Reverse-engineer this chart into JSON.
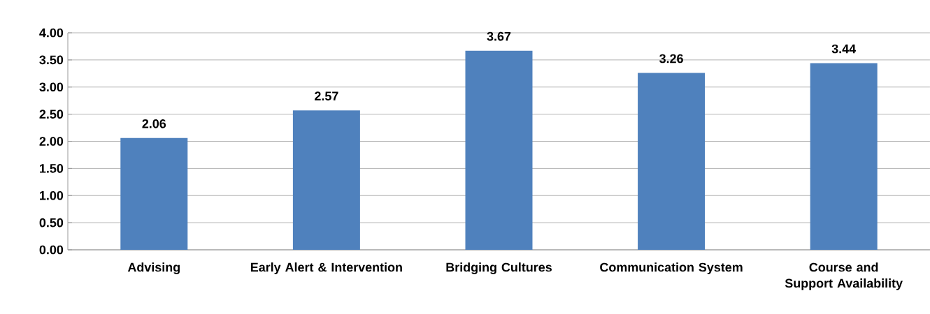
{
  "chart_data": {
    "type": "bar",
    "categories": [
      "Advising",
      "Early Alert & Intervention",
      "Bridging Cultures",
      "Communication System",
      "Course and Support Availability"
    ],
    "values": [
      2.06,
      2.57,
      3.67,
      3.26,
      3.44
    ],
    "color": "#4f81bd",
    "ylim": [
      0,
      4
    ],
    "yticks": [
      {
        "value": 0,
        "label": "0.00"
      },
      {
        "value": 0.5,
        "label": "0.50"
      },
      {
        "value": 1,
        "label": "1.00"
      },
      {
        "value": 1.5,
        "label": "1.50"
      },
      {
        "value": 2,
        "label": "2.00"
      },
      {
        "value": 2.5,
        "label": "2.50"
      },
      {
        "value": 3,
        "label": "3.00"
      },
      {
        "value": 3.5,
        "label": "3.50"
      },
      {
        "value": 4,
        "label": "4.00"
      }
    ],
    "grid": "y",
    "data_labels": true
  }
}
